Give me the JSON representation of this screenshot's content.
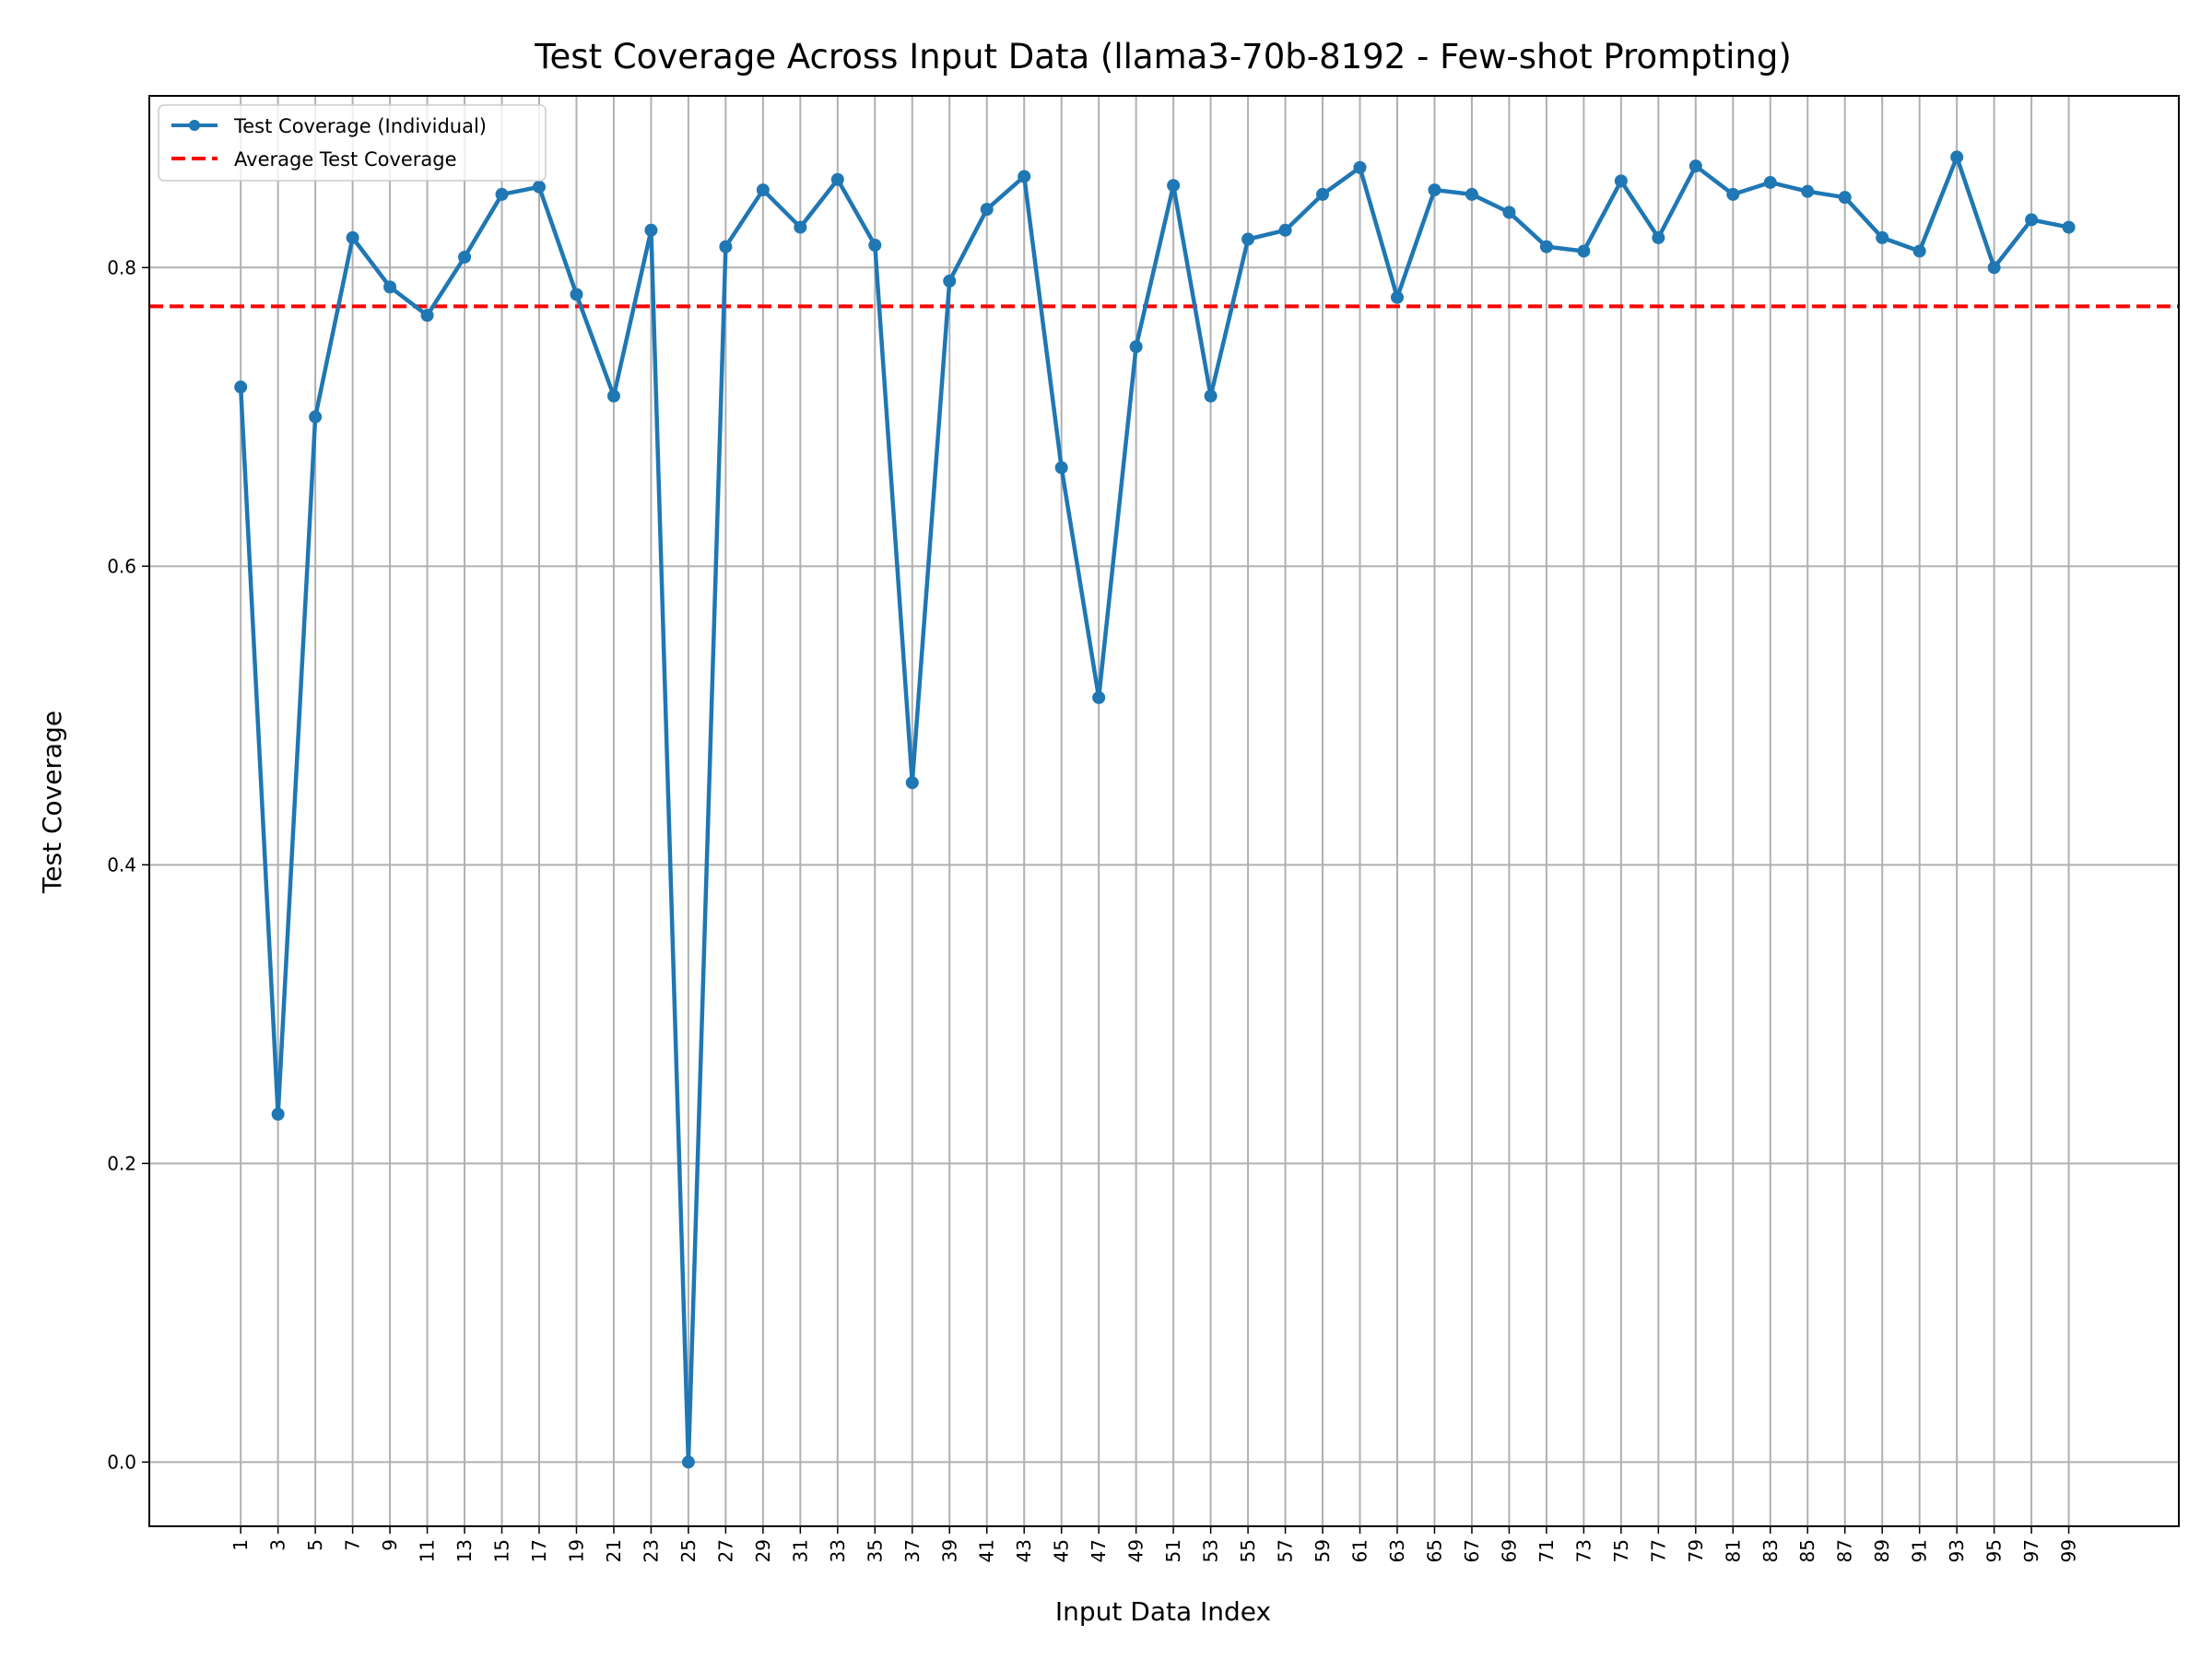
{
  "chart_data": {
    "type": "line",
    "title": "Test Coverage Across Input Data (llama3-70b-8192 - Few-shot Prompting)",
    "xlabel": "Input Data Index",
    "ylabel": "Test Coverage",
    "x": [
      1,
      3,
      5,
      7,
      9,
      11,
      13,
      15,
      17,
      19,
      21,
      23,
      25,
      27,
      29,
      31,
      33,
      35,
      37,
      39,
      41,
      43,
      45,
      47,
      49,
      51,
      53,
      55,
      57,
      59,
      61,
      63,
      65,
      67,
      69,
      71,
      73,
      75,
      77,
      79,
      81,
      83,
      85,
      87,
      89,
      91,
      93,
      95,
      97,
      99
    ],
    "x_ticks": [
      "1",
      "3",
      "5",
      "7",
      "9",
      "11",
      "13",
      "15",
      "17",
      "19",
      "21",
      "23",
      "25",
      "27",
      "29",
      "31",
      "33",
      "35",
      "37",
      "39",
      "41",
      "43",
      "45",
      "47",
      "49",
      "51",
      "53",
      "55",
      "57",
      "59",
      "61",
      "63",
      "65",
      "67",
      "69",
      "71",
      "73",
      "75",
      "77",
      "79",
      "81",
      "83",
      "85",
      "87",
      "89",
      "91",
      "93",
      "95",
      "97",
      "99"
    ],
    "y_ticks": [
      "0.0",
      "0.2",
      "0.4",
      "0.6",
      "0.8"
    ],
    "y_tick_values": [
      0.0,
      0.2,
      0.4,
      0.6,
      0.8
    ],
    "xlim": [
      -3.9,
      104.9
    ],
    "ylim": [
      -0.043,
      0.915
    ],
    "grid": true,
    "legend_position": "top-left",
    "series": [
      {
        "name": "Test Coverage (Individual)",
        "color": "#1f77b4",
        "style": "solid",
        "marker": "circle",
        "values": [
          0.72,
          0.233,
          0.7,
          0.82,
          0.787,
          0.768,
          0.807,
          0.849,
          0.854,
          0.782,
          0.714,
          0.825,
          0.0,
          0.814,
          0.852,
          0.827,
          0.859,
          0.815,
          0.455,
          0.791,
          0.839,
          0.861,
          0.666,
          0.512,
          0.747,
          0.855,
          0.714,
          0.819,
          0.825,
          0.849,
          0.867,
          0.78,
          0.852,
          0.849,
          0.837,
          0.814,
          0.811,
          0.858,
          0.82,
          0.868,
          0.849,
          0.857,
          0.851,
          0.847,
          0.82,
          0.811,
          0.874,
          0.8,
          0.832,
          0.827
        ]
      },
      {
        "name": "Average Test Coverage",
        "color": "#ff0000",
        "style": "dashed",
        "value": 0.774
      }
    ]
  }
}
